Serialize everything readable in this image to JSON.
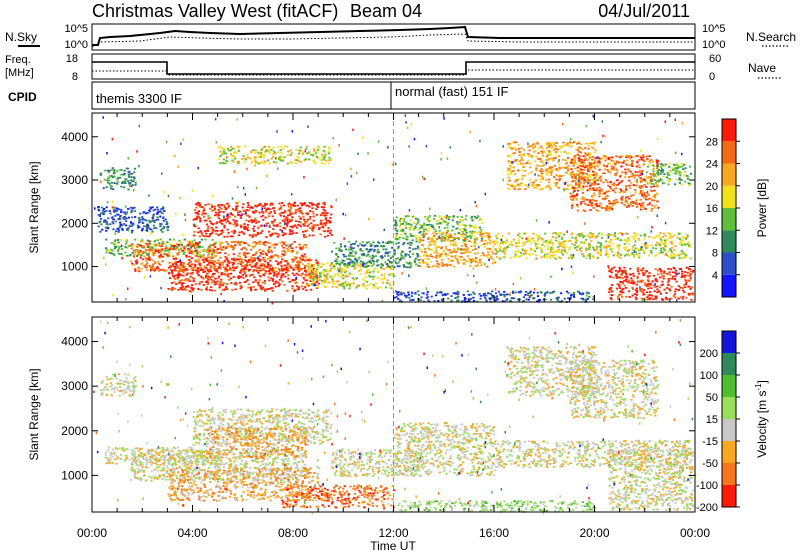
{
  "header": {
    "title": "Christmas Valley West (fitACF)",
    "beam": "Beam 04",
    "date": "04/Jul/2011"
  },
  "time_axis": {
    "label": "Time UT",
    "ticks": [
      "00:00",
      "04:00",
      "08:00",
      "12:00",
      "16:00",
      "20:00",
      "00:00"
    ],
    "range_hours": [
      0,
      24
    ]
  },
  "summary_panels": {
    "nsky": {
      "left_label": "N.Sky",
      "right_label": "N.Search",
      "left_ticks": [
        "10^5",
        "10^0"
      ],
      "right_ticks": [
        "10^5",
        "10^0"
      ]
    },
    "freq": {
      "left_label_line1": "Freq.",
      "left_label_line2": "[MHz]",
      "left_ticks": [
        "18",
        "8"
      ],
      "right_ticks": [
        "60",
        "0"
      ],
      "right_label": "Nave"
    },
    "cpid": {
      "label": "CPID",
      "segments": [
        {
          "start_hour": 0,
          "end_hour": 12,
          "text": "themis 3300 IF"
        },
        {
          "start_hour": 12,
          "end_hour": 24,
          "text": "normal (fast) 151 IF"
        }
      ]
    }
  },
  "chart_data": [
    {
      "type": "heatmap",
      "name": "power",
      "ylabel": "Slant Range [km]",
      "yticks": [
        1000,
        2000,
        3000,
        4000
      ],
      "ylim": [
        180,
        4550
      ],
      "xlim": [
        0,
        24
      ],
      "colorbar": {
        "label": "Power [dB]",
        "ticks": [
          "4",
          "8",
          "12",
          "16",
          "20",
          "24",
          "28"
        ],
        "colors": [
          "#1414ff",
          "#2b50c8",
          "#2e8a5a",
          "#5fbf3a",
          "#f2e01a",
          "#f7a81e",
          "#f66a14",
          "#ff1a0a"
        ]
      },
      "regions": [
        {
          "x": [
            0.3,
            1.7
          ],
          "y": [
            2800,
            3300
          ],
          "level": 2
        },
        {
          "x": [
            0.2,
            3.0
          ],
          "y": [
            1800,
            2400
          ],
          "level": 1
        },
        {
          "x": [
            0.5,
            5.0
          ],
          "y": [
            1250,
            1650
          ],
          "level": 3
        },
        {
          "x": [
            1.5,
            8.5
          ],
          "y": [
            900,
            1600
          ],
          "level": 6
        },
        {
          "x": [
            4.0,
            9.5
          ],
          "y": [
            1700,
            2500
          ],
          "level": 7
        },
        {
          "x": [
            3.0,
            9.0
          ],
          "y": [
            450,
            1200
          ],
          "level": 7
        },
        {
          "x": [
            8.5,
            12.0
          ],
          "y": [
            500,
            1100
          ],
          "level": 4
        },
        {
          "x": [
            9.5,
            13.0
          ],
          "y": [
            1000,
            1600
          ],
          "level": 2
        },
        {
          "x": [
            5.0,
            9.5
          ],
          "y": [
            3400,
            3800
          ],
          "level": 4
        },
        {
          "x": [
            12.0,
            15.5
          ],
          "y": [
            1600,
            2200
          ],
          "level": 3
        },
        {
          "x": [
            13.0,
            16.0
          ],
          "y": [
            1000,
            1800
          ],
          "level": 5
        },
        {
          "x": [
            16.0,
            23.8
          ],
          "y": [
            1200,
            1800
          ],
          "level": 4
        },
        {
          "x": [
            16.5,
            20.0
          ],
          "y": [
            2800,
            3900
          ],
          "level": 5
        },
        {
          "x": [
            19.0,
            22.5
          ],
          "y": [
            2300,
            3600
          ],
          "level": 6
        },
        {
          "x": [
            22.0,
            23.8
          ],
          "y": [
            2900,
            3400
          ],
          "level": 3
        },
        {
          "x": [
            20.5,
            23.9
          ],
          "y": [
            250,
            1000
          ],
          "level": 7
        },
        {
          "x": [
            12.0,
            20.0
          ],
          "y": [
            200,
            450
          ],
          "level": 1
        }
      ]
    },
    {
      "type": "heatmap",
      "name": "velocity",
      "ylabel": "Slant Range [km]",
      "yticks": [
        1000,
        2000,
        3000,
        4000
      ],
      "ylim": [
        180,
        4550
      ],
      "xlim": [
        0,
        24
      ],
      "colorbar": {
        "label": "Velocity [m s^-1]",
        "ticks": [
          "200",
          "100",
          "50",
          "15",
          "-15",
          "-50",
          "-100",
          "-200"
        ],
        "colors": [
          "#1414dc",
          "#2e8a5a",
          "#4fbf2e",
          "#9adf5a",
          "#c8c8c8",
          "#f7a81e",
          "#f7761e",
          "#ff1a0a"
        ]
      },
      "regions": [
        {
          "x": [
            0.3,
            1.7
          ],
          "y": [
            2800,
            3300
          ],
          "level": 4
        },
        {
          "x": [
            0.5,
            5.0
          ],
          "y": [
            1250,
            1650
          ],
          "level": 4
        },
        {
          "x": [
            1.5,
            8.5
          ],
          "y": [
            900,
            1600
          ],
          "level": 4
        },
        {
          "x": [
            4.0,
            9.5
          ],
          "y": [
            1700,
            2500
          ],
          "level": 4
        },
        {
          "x": [
            4.5,
            8.5
          ],
          "y": [
            1400,
            2100
          ],
          "level": 5
        },
        {
          "x": [
            3.0,
            9.0
          ],
          "y": [
            450,
            1200
          ],
          "level": 5
        },
        {
          "x": [
            7.5,
            12.0
          ],
          "y": [
            300,
            800
          ],
          "level": 6
        },
        {
          "x": [
            9.5,
            13.0
          ],
          "y": [
            1000,
            1600
          ],
          "level": 4
        },
        {
          "x": [
            12.0,
            16.0
          ],
          "y": [
            1000,
            2200
          ],
          "level": 4
        },
        {
          "x": [
            16.0,
            23.8
          ],
          "y": [
            1200,
            1800
          ],
          "level": 4
        },
        {
          "x": [
            16.5,
            20.0
          ],
          "y": [
            2800,
            3900
          ],
          "level": 4
        },
        {
          "x": [
            19.0,
            22.5
          ],
          "y": [
            2300,
            3600
          ],
          "level": 4
        },
        {
          "x": [
            20.5,
            23.9
          ],
          "y": [
            250,
            1600
          ],
          "level": 4
        },
        {
          "x": [
            12.0,
            20.0
          ],
          "y": [
            200,
            450
          ],
          "level": 3
        }
      ]
    }
  ]
}
